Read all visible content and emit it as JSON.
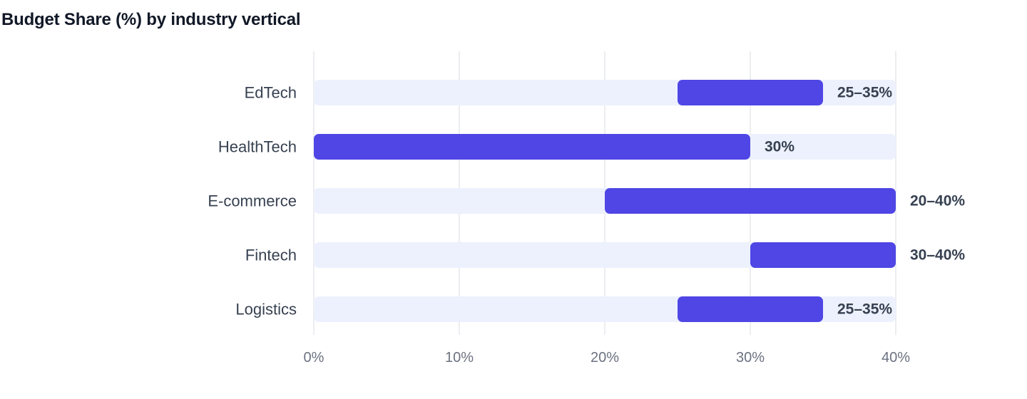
{
  "chart_data": {
    "type": "bar",
    "title": "Budget Share (%) by industry vertical",
    "orientation": "horizontal-range",
    "categories": [
      "EdTech",
      "HealthTech",
      "E-commerce",
      "Fintech",
      "Logistics"
    ],
    "ranges": [
      {
        "category": "EdTech",
        "low": 25,
        "high": 35,
        "label": "25–35%"
      },
      {
        "category": "HealthTech",
        "low": 0,
        "high": 30,
        "label": "30%"
      },
      {
        "category": "E-commerce",
        "low": 20,
        "high": 40,
        "label": "20–40%"
      },
      {
        "category": "Fintech",
        "low": 30,
        "high": 40,
        "label": "30–40%"
      },
      {
        "category": "Logistics",
        "low": 25,
        "high": 35,
        "label": "25–35%"
      }
    ],
    "xlim": [
      0,
      40
    ],
    "xticks": [
      0,
      10,
      20,
      30,
      40
    ],
    "xtick_labels": [
      "0%",
      "10%",
      "20%",
      "30%",
      "40%"
    ],
    "grid": "vertical",
    "colors": {
      "bar": "#4f46e5",
      "track": "#edf1fd",
      "grid": "#e5e7eb",
      "label": "#374151",
      "tick": "#6b7280",
      "title": "#111827"
    }
  }
}
